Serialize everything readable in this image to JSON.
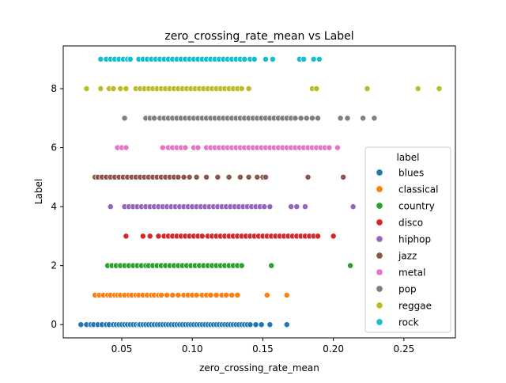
{
  "chart_data": {
    "type": "scatter",
    "title": "zero_crossing_rate_mean vs Label",
    "xlabel": "zero_crossing_rate_mean",
    "ylabel": "Label",
    "xlim": [
      0.0085,
      0.2865
    ],
    "ylim": [
      -0.45,
      9.45
    ],
    "xticks": [
      0.05,
      0.1,
      0.15,
      0.2,
      0.25
    ],
    "xtick_labels": [
      "0.05",
      "0.10",
      "0.15",
      "0.20",
      "0.25"
    ],
    "yticks": [
      0,
      2,
      4,
      6,
      8
    ],
    "ytick_labels": [
      "0",
      "2",
      "4",
      "6",
      "8"
    ],
    "grid": false,
    "legend": {
      "title": "label",
      "placement": "lower-right"
    },
    "series": [
      {
        "name": "blues",
        "color": "#1f77b4",
        "y": 0,
        "x": [
          0.021,
          0.025,
          0.028,
          0.03,
          0.033,
          0.036,
          0.039,
          0.041,
          0.044,
          0.046,
          0.048,
          0.05,
          0.052,
          0.054,
          0.056,
          0.058,
          0.06,
          0.062,
          0.063,
          0.065,
          0.067,
          0.069,
          0.071,
          0.073,
          0.075,
          0.077,
          0.079,
          0.081,
          0.083,
          0.085,
          0.087,
          0.089,
          0.091,
          0.093,
          0.095,
          0.097,
          0.099,
          0.101,
          0.103,
          0.105,
          0.107,
          0.109,
          0.111,
          0.113,
          0.115,
          0.117,
          0.119,
          0.121,
          0.123,
          0.125,
          0.127,
          0.129,
          0.131,
          0.133,
          0.135,
          0.137,
          0.139,
          0.141,
          0.145,
          0.149,
          0.155,
          0.167
        ]
      },
      {
        "name": "classical",
        "color": "#ff7f0e",
        "y": 1,
        "x": [
          0.031,
          0.034,
          0.037,
          0.04,
          0.042,
          0.045,
          0.047,
          0.049,
          0.052,
          0.055,
          0.057,
          0.06,
          0.062,
          0.065,
          0.068,
          0.071,
          0.073,
          0.076,
          0.078,
          0.082,
          0.086,
          0.09,
          0.094,
          0.097,
          0.1,
          0.103,
          0.107,
          0.11,
          0.113,
          0.117,
          0.121,
          0.124,
          0.128,
          0.132,
          0.153,
          0.167
        ]
      },
      {
        "name": "country",
        "color": "#2ca02c",
        "y": 2,
        "x": [
          0.04,
          0.043,
          0.046,
          0.049,
          0.052,
          0.055,
          0.058,
          0.061,
          0.064,
          0.067,
          0.069,
          0.072,
          0.075,
          0.078,
          0.081,
          0.084,
          0.087,
          0.09,
          0.093,
          0.096,
          0.099,
          0.102,
          0.105,
          0.108,
          0.111,
          0.114,
          0.117,
          0.12,
          0.123,
          0.126,
          0.129,
          0.132,
          0.135,
          0.156,
          0.212
        ]
      },
      {
        "name": "disco",
        "color": "#d62728",
        "y": 3,
        "x": [
          0.053,
          0.065,
          0.07,
          0.076,
          0.08,
          0.083,
          0.086,
          0.089,
          0.092,
          0.095,
          0.098,
          0.101,
          0.104,
          0.107,
          0.111,
          0.114,
          0.117,
          0.12,
          0.123,
          0.126,
          0.129,
          0.132,
          0.135,
          0.138,
          0.141,
          0.144,
          0.147,
          0.15,
          0.153,
          0.156,
          0.159,
          0.162,
          0.165,
          0.168,
          0.171,
          0.174,
          0.177,
          0.18,
          0.183,
          0.186,
          0.189,
          0.2
        ]
      },
      {
        "name": "hiphop",
        "color": "#9467bd",
        "y": 4,
        "x": [
          0.042,
          0.052,
          0.055,
          0.058,
          0.061,
          0.064,
          0.067,
          0.07,
          0.073,
          0.076,
          0.079,
          0.082,
          0.085,
          0.088,
          0.091,
          0.094,
          0.097,
          0.1,
          0.103,
          0.106,
          0.109,
          0.112,
          0.115,
          0.118,
          0.121,
          0.124,
          0.127,
          0.13,
          0.133,
          0.136,
          0.139,
          0.142,
          0.145,
          0.148,
          0.151,
          0.155,
          0.17,
          0.174,
          0.18,
          0.214
        ]
      },
      {
        "name": "jazz",
        "color": "#8c564b",
        "y": 5,
        "x": [
          0.031,
          0.033,
          0.036,
          0.039,
          0.042,
          0.045,
          0.048,
          0.051,
          0.054,
          0.057,
          0.06,
          0.063,
          0.066,
          0.069,
          0.072,
          0.075,
          0.078,
          0.081,
          0.084,
          0.087,
          0.09,
          0.094,
          0.098,
          0.103,
          0.11,
          0.118,
          0.126,
          0.134,
          0.14,
          0.146,
          0.15,
          0.152,
          0.182,
          0.207
        ]
      },
      {
        "name": "metal",
        "color": "#e377c2",
        "y": 6,
        "x": [
          0.047,
          0.05,
          0.053,
          0.079,
          0.083,
          0.086,
          0.089,
          0.092,
          0.095,
          0.101,
          0.104,
          0.11,
          0.113,
          0.116,
          0.119,
          0.122,
          0.125,
          0.128,
          0.131,
          0.134,
          0.137,
          0.14,
          0.143,
          0.146,
          0.149,
          0.152,
          0.155,
          0.158,
          0.161,
          0.164,
          0.167,
          0.17,
          0.173,
          0.176,
          0.179,
          0.182,
          0.185,
          0.188,
          0.191,
          0.194,
          0.197,
          0.203
        ]
      },
      {
        "name": "pop",
        "color": "#7f7f7f",
        "y": 7,
        "x": [
          0.052,
          0.067,
          0.07,
          0.073,
          0.077,
          0.08,
          0.083,
          0.086,
          0.089,
          0.092,
          0.095,
          0.098,
          0.101,
          0.104,
          0.107,
          0.11,
          0.113,
          0.116,
          0.119,
          0.122,
          0.125,
          0.128,
          0.131,
          0.134,
          0.137,
          0.14,
          0.143,
          0.146,
          0.149,
          0.152,
          0.155,
          0.158,
          0.161,
          0.164,
          0.167,
          0.17,
          0.173,
          0.177,
          0.181,
          0.185,
          0.189,
          0.205,
          0.21,
          0.221,
          0.229
        ]
      },
      {
        "name": "reggae",
        "color": "#bcbd22",
        "y": 8,
        "x": [
          0.025,
          0.035,
          0.041,
          0.044,
          0.049,
          0.053,
          0.06,
          0.063,
          0.066,
          0.069,
          0.072,
          0.075,
          0.078,
          0.081,
          0.084,
          0.087,
          0.09,
          0.093,
          0.096,
          0.099,
          0.102,
          0.105,
          0.108,
          0.111,
          0.114,
          0.117,
          0.12,
          0.123,
          0.126,
          0.129,
          0.132,
          0.135,
          0.14,
          0.185,
          0.188,
          0.224,
          0.26,
          0.275
        ]
      },
      {
        "name": "rock",
        "color": "#17becf",
        "y": 9,
        "x": [
          0.035,
          0.039,
          0.042,
          0.045,
          0.048,
          0.051,
          0.054,
          0.056,
          0.062,
          0.065,
          0.068,
          0.071,
          0.074,
          0.077,
          0.08,
          0.083,
          0.086,
          0.089,
          0.092,
          0.095,
          0.098,
          0.101,
          0.104,
          0.107,
          0.11,
          0.113,
          0.116,
          0.119,
          0.122,
          0.125,
          0.128,
          0.131,
          0.134,
          0.137,
          0.141,
          0.144,
          0.152,
          0.157,
          0.176,
          0.179,
          0.186,
          0.19
        ]
      }
    ]
  }
}
